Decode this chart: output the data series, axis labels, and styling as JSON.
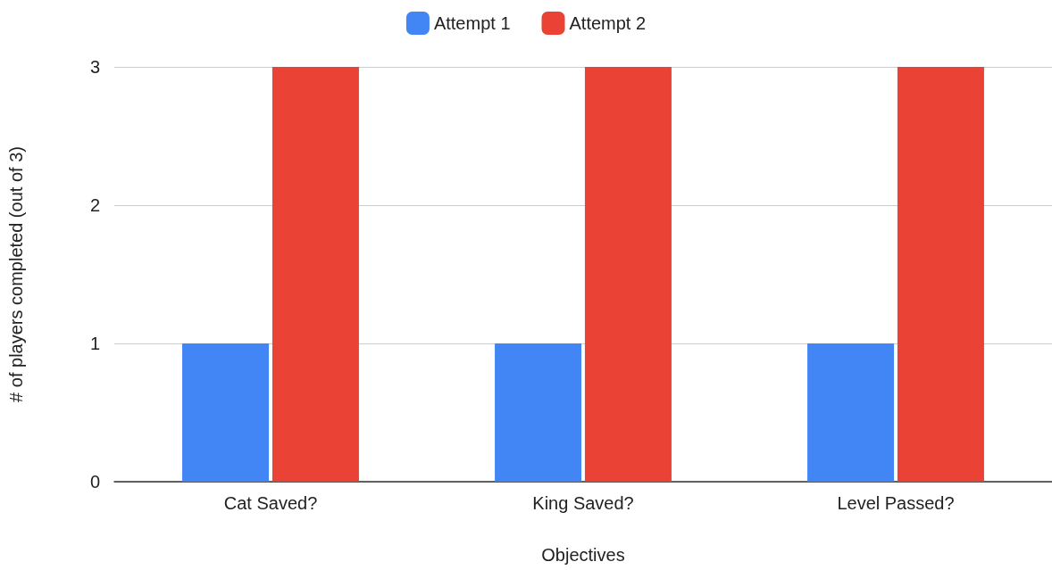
{
  "chart_data": {
    "type": "bar",
    "xlabel": "Objectives",
    "ylabel": "# of players completed (out of 3)",
    "categories": [
      "Cat Saved?",
      "King Saved?",
      "Level Passed?"
    ],
    "series": [
      {
        "name": "Attempt 1",
        "color": "#4285f4",
        "values": [
          1,
          1,
          1
        ]
      },
      {
        "name": "Attempt 2",
        "color": "#ea4335",
        "values": [
          3,
          3,
          3
        ]
      }
    ],
    "ylim": [
      0,
      3
    ],
    "yticks": [
      0,
      1,
      2,
      3
    ],
    "grid": "y",
    "legend": "top"
  }
}
